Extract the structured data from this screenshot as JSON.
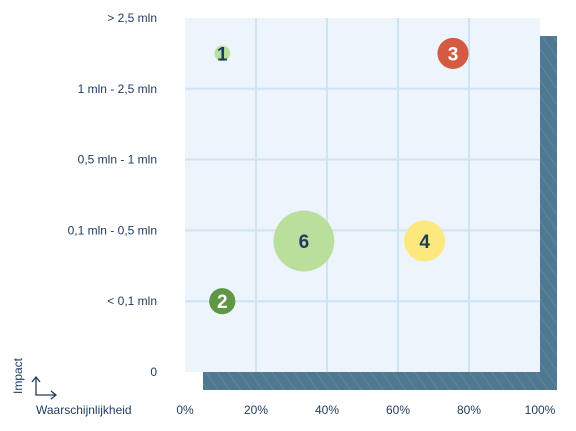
{
  "chart_data": {
    "type": "scatter",
    "title": "",
    "xlabel": "Waarschijnlijkheid",
    "ylabel": "Impact",
    "x_tick_labels": [
      "0%",
      "20%",
      "40%",
      "60%",
      "80%",
      "100%"
    ],
    "x_ticks": [
      0,
      20,
      40,
      60,
      80,
      100
    ],
    "xlim": [
      0,
      100
    ],
    "y_tick_labels": [
      "0",
      "< 0,1 mln",
      "0,1 mln - 0,5 mln",
      "0,5 mln - 1 mln",
      "1 mln - 2,5 mln",
      "> 2,5 mln"
    ],
    "ylim": [
      0,
      5
    ],
    "grid": true,
    "legend": "none",
    "points": [
      {
        "label": "1",
        "x": 10.5,
        "y": 4.5,
        "size": 0.22,
        "color": "#b8e09c",
        "text_color": "#1e3a5c"
      },
      {
        "label": "2",
        "x": 10.5,
        "y": 1.0,
        "size": 0.37,
        "color": "#5f9744",
        "text_color": "#ffffff"
      },
      {
        "label": "3",
        "x": 75.5,
        "y": 4.5,
        "size": 0.44,
        "color": "#d35b43",
        "text_color": "#ffffff"
      },
      {
        "label": "4",
        "x": 67.5,
        "y": 1.85,
        "size": 0.58,
        "color": "#fde880",
        "text_color": "#1e3a5c"
      },
      {
        "label": "6",
        "x": 33.5,
        "y": 1.85,
        "size": 0.86,
        "color": "#b8e09c",
        "text_color": "#1e3a5c"
      }
    ],
    "colors": {
      "plot_background": "#edf4fb",
      "grid": "#cde4f6",
      "shadow": "#4f7891",
      "text": "#1e3a5c"
    }
  }
}
